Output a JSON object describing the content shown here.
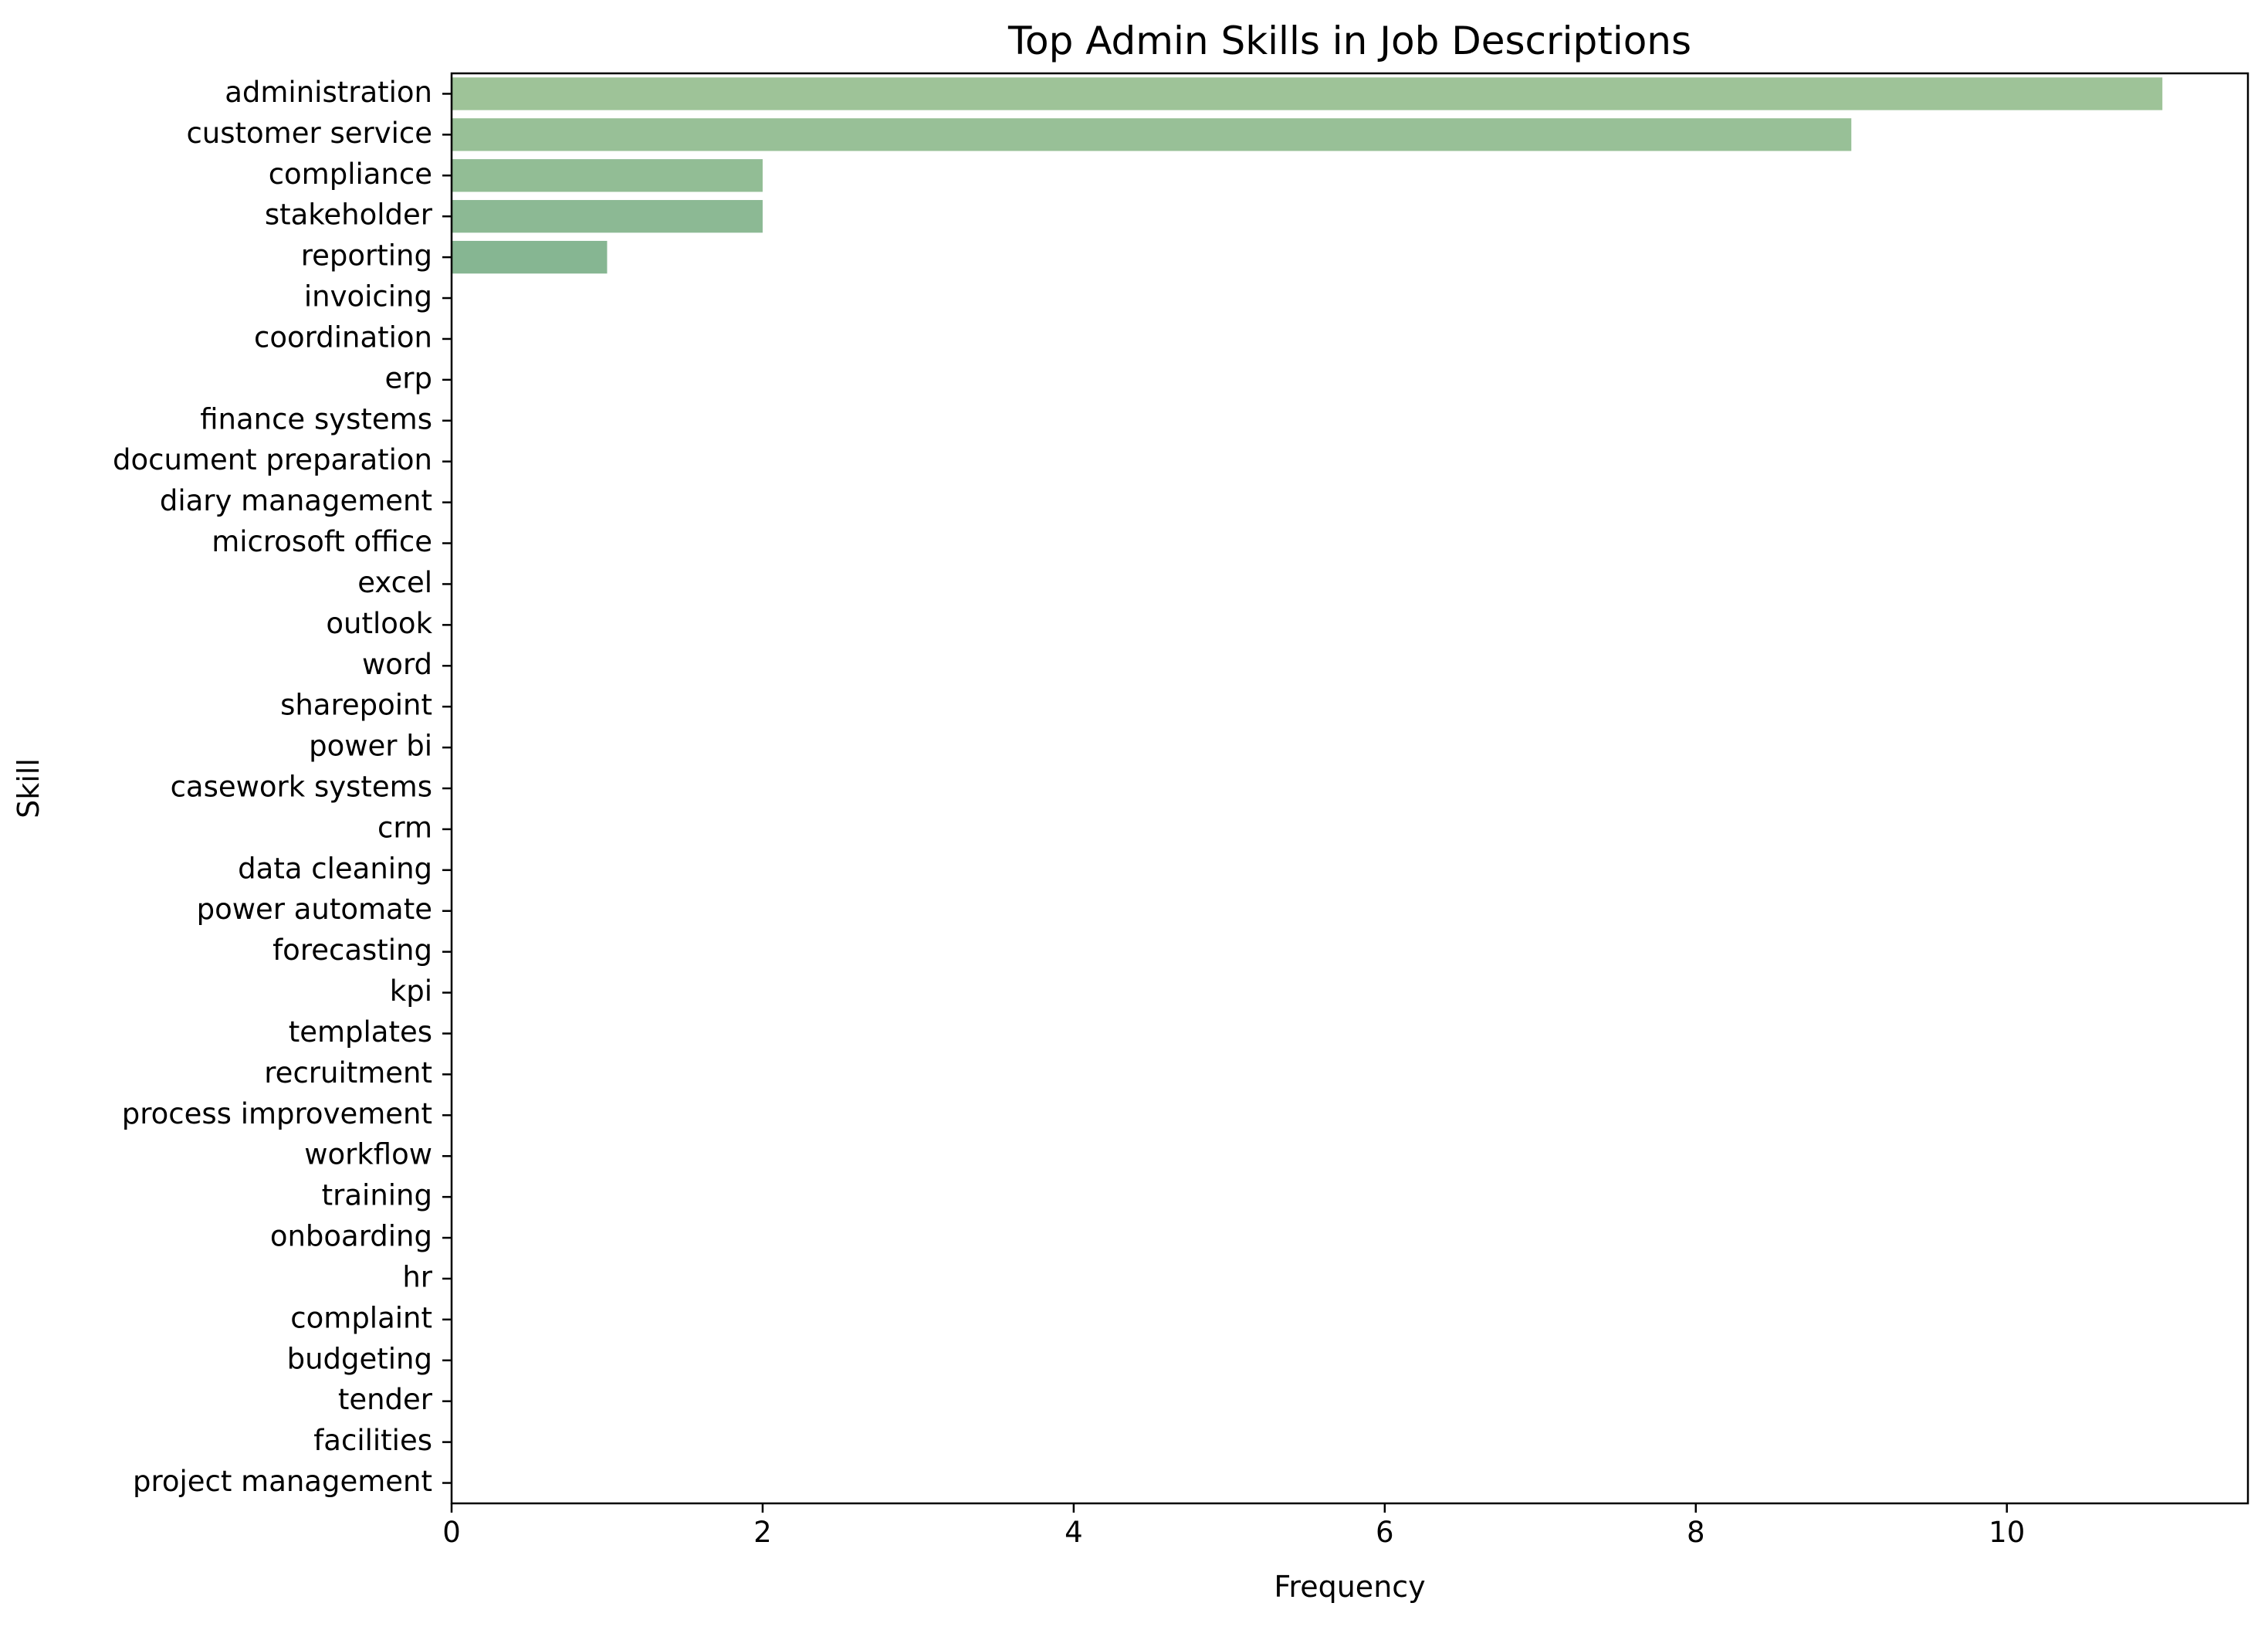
{
  "chart_data": {
    "type": "bar",
    "orientation": "horizontal",
    "title": "Top Admin Skills in Job Descriptions",
    "xlabel": "Frequency",
    "ylabel": "Skill",
    "xlim": [
      0,
      11.55
    ],
    "xticks": [
      0,
      2,
      4,
      6,
      8,
      10
    ],
    "grid": false,
    "bar_color_start": "#9ec398",
    "bar_color_end": "#86b692",
    "categories": [
      "administration",
      "customer service",
      "compliance",
      "stakeholder",
      "reporting",
      "invoicing",
      "coordination",
      "erp",
      "finance systems",
      "document preparation",
      "diary management",
      "microsoft office",
      "excel",
      "outlook",
      "word",
      "sharepoint",
      "power bi",
      "casework systems",
      "crm",
      "data cleaning",
      "power automate",
      "forecasting",
      "kpi",
      "templates",
      "recruitment",
      "process improvement",
      "workflow",
      "training",
      "onboarding",
      "hr",
      "complaint",
      "budgeting",
      "tender",
      "facilities",
      "project management"
    ],
    "values": [
      11,
      9,
      2,
      2,
      1,
      0,
      0,
      0,
      0,
      0,
      0,
      0,
      0,
      0,
      0,
      0,
      0,
      0,
      0,
      0,
      0,
      0,
      0,
      0,
      0,
      0,
      0,
      0,
      0,
      0,
      0,
      0,
      0,
      0,
      0
    ]
  }
}
